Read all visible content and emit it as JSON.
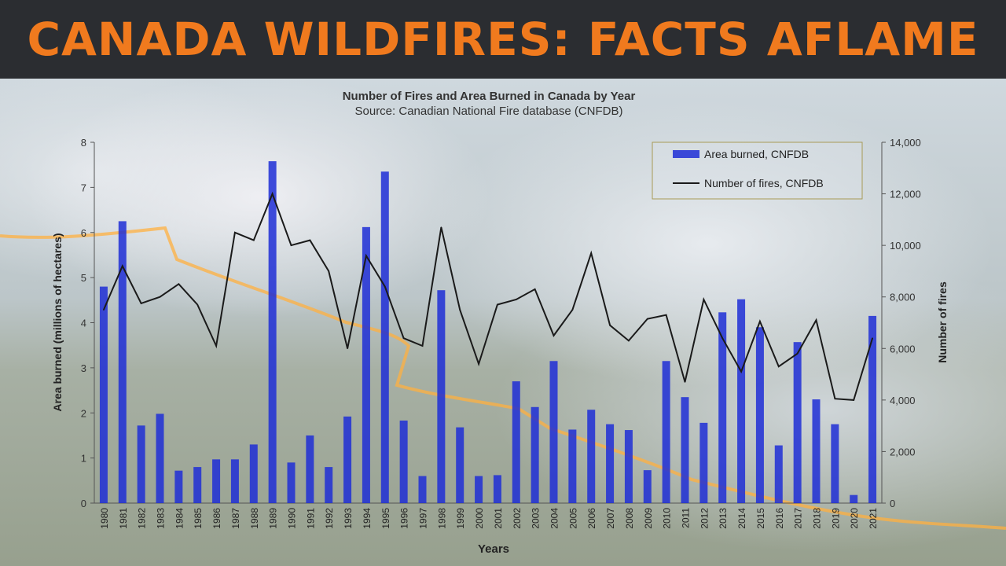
{
  "banner": {
    "title": "CANADA WILDFIRES: FACTS AFLAME"
  },
  "colors": {
    "banner_bg": "#2b2d31",
    "banner_text": "#f07a1e",
    "bar": "#1f2ed6",
    "line": "#1a1a1a",
    "fire": "#ffb040"
  },
  "chart_data": {
    "type": "bar",
    "title": "Number of Fires and Area Burned in Canada by Year",
    "subtitle": "Source: Canadian National Fire database (CNFDB)",
    "xlabel": "Years",
    "ylabel": "Area burned (millions of hectares)",
    "y2label": "Number of fires",
    "ylim": [
      0,
      8
    ],
    "y2lim": [
      0,
      14000
    ],
    "y_ticks": [
      "0",
      "1",
      "2",
      "3",
      "4",
      "5",
      "6",
      "7",
      "8"
    ],
    "y2_ticks": [
      "0",
      "2,000",
      "4,000",
      "6,000",
      "8,000",
      "10,000",
      "12,000",
      "14,000"
    ],
    "legend_position": "top-right",
    "categories": [
      "1980",
      "1981",
      "1982",
      "1983",
      "1984",
      "1985",
      "1986",
      "1987",
      "1988",
      "1989",
      "1990",
      "1991",
      "1992",
      "1993",
      "1994",
      "1995",
      "1996",
      "1997",
      "1998",
      "1999",
      "2000",
      "2001",
      "2002",
      "2003",
      "2004",
      "2005",
      "2006",
      "2007",
      "2008",
      "2009",
      "2010",
      "2011",
      "2012",
      "2013",
      "2014",
      "2015",
      "2016",
      "2017",
      "2018",
      "2019",
      "2020",
      "2021"
    ],
    "series": [
      {
        "name": "Area burned, CNFDB",
        "type": "bar",
        "axis": "left",
        "values": [
          4.8,
          6.25,
          1.72,
          1.98,
          0.72,
          0.8,
          0.97,
          0.97,
          1.3,
          7.58,
          0.9,
          1.5,
          0.8,
          1.92,
          6.12,
          7.35,
          1.83,
          0.6,
          4.72,
          1.68,
          0.6,
          0.62,
          2.7,
          2.13,
          3.15,
          1.63,
          2.07,
          1.75,
          1.62,
          0.73,
          3.15,
          2.35,
          1.78,
          4.23,
          4.52,
          3.9,
          1.28,
          3.57,
          2.3,
          1.75,
          0.18,
          4.15
        ]
      },
      {
        "name": "Number of fires, CNFDB",
        "type": "line",
        "axis": "right",
        "values": [
          7500,
          9200,
          7750,
          8000,
          8500,
          7700,
          6100,
          10500,
          10200,
          12000,
          10000,
          10200,
          9000,
          6000,
          9600,
          8400,
          6400,
          6100,
          10700,
          7500,
          5400,
          7700,
          7900,
          8300,
          6500,
          7500,
          9700,
          6900,
          6300,
          7150,
          7300,
          4700,
          7900,
          6400,
          5100,
          7050,
          5300,
          5800,
          7100,
          4050,
          4000,
          6400
        ]
      }
    ]
  }
}
